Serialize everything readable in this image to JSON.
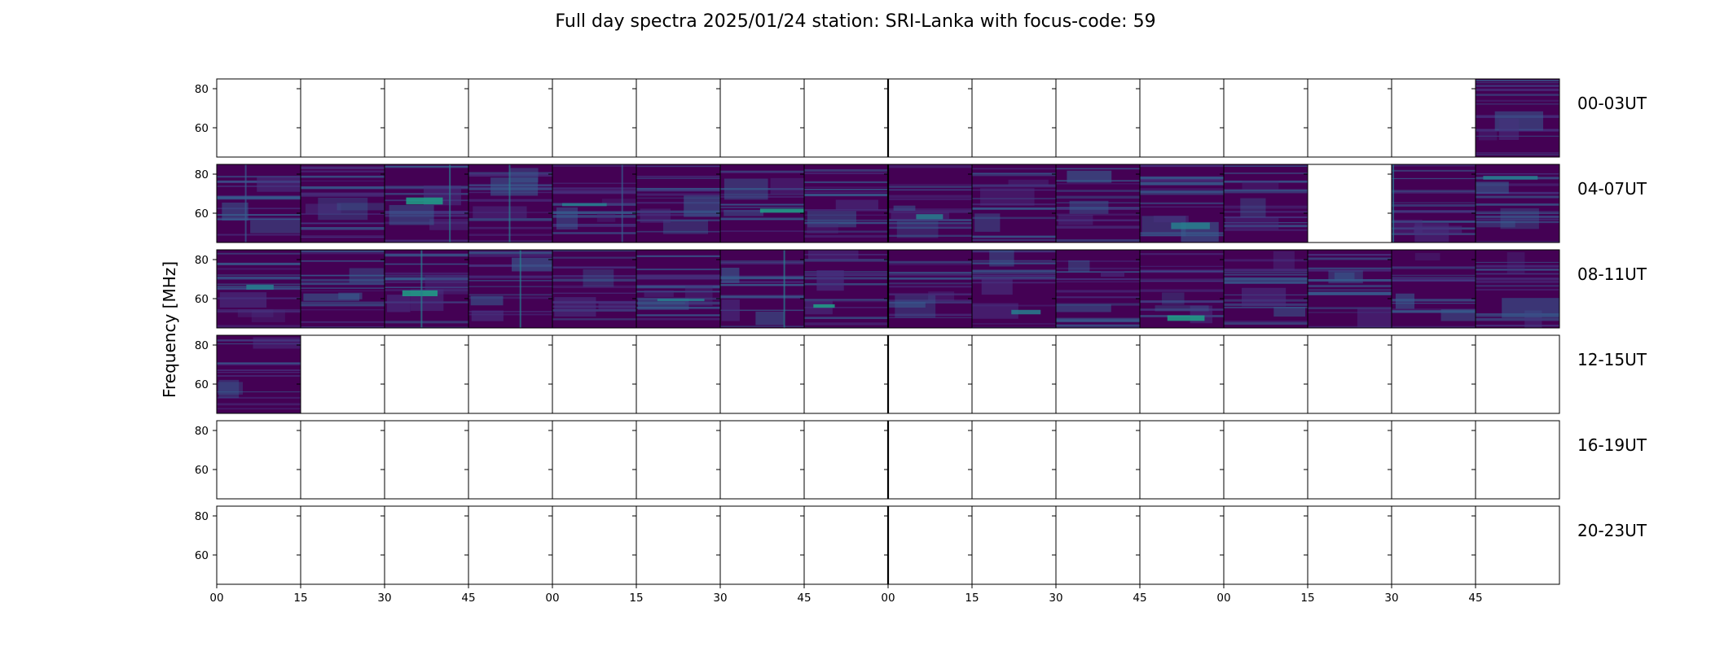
{
  "chart_data": {
    "type": "heatmap",
    "title": "Full day spectra 2025/01/24 station: SRI-Lanka with focus-code: 59",
    "ylabel": "Frequency [MHz]",
    "xlabel": "",
    "ytick_labels": [
      "80",
      "60"
    ],
    "yticks": [
      80,
      60
    ],
    "ylim": [
      45,
      85
    ],
    "xtick_labels": [
      "00",
      "15",
      "30",
      "45",
      "00",
      "15",
      "30",
      "45",
      "00",
      "15",
      "30",
      "45",
      "00",
      "15",
      "30",
      "45"
    ],
    "columns_per_row": 16,
    "minutes_per_panel": 15,
    "colormap": [
      "#440154",
      "#46327e",
      "#365c8d",
      "#277f8e",
      "#1fa187",
      "#4ac16d",
      "#a0da39",
      "#fde725"
    ],
    "rows": [
      {
        "label": "00-03UT",
        "data_present": [
          false,
          false,
          false,
          false,
          false,
          false,
          false,
          false,
          false,
          false,
          false,
          false,
          false,
          false,
          false,
          true
        ]
      },
      {
        "label": "04-07UT",
        "data_present": [
          true,
          true,
          true,
          true,
          true,
          true,
          true,
          true,
          true,
          true,
          true,
          true,
          true,
          false,
          true,
          true
        ]
      },
      {
        "label": "08-11UT",
        "data_present": [
          true,
          true,
          true,
          true,
          true,
          true,
          true,
          true,
          true,
          true,
          true,
          true,
          true,
          true,
          true,
          true
        ]
      },
      {
        "label": "12-15UT",
        "data_present": [
          true,
          false,
          false,
          false,
          false,
          false,
          false,
          false,
          false,
          false,
          false,
          false,
          false,
          false,
          false,
          false
        ]
      },
      {
        "label": "16-19UT",
        "data_present": [
          false,
          false,
          false,
          false,
          false,
          false,
          false,
          false,
          false,
          false,
          false,
          false,
          false,
          false,
          false,
          false
        ]
      },
      {
        "label": "20-23UT",
        "data_present": [
          false,
          false,
          false,
          false,
          false,
          false,
          false,
          false,
          false,
          false,
          false,
          false,
          false,
          false,
          false,
          false
        ]
      }
    ],
    "grid": false,
    "legend": "none"
  }
}
